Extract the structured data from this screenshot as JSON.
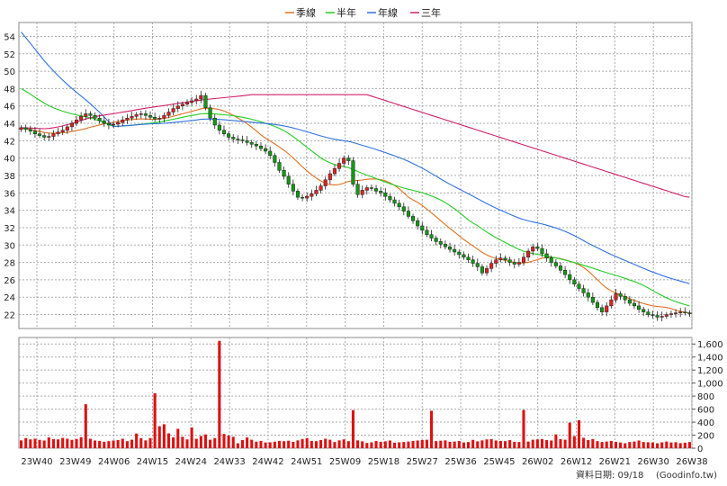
{
  "chart_data": {
    "type": "candlestick",
    "legend": [
      {
        "name": "季線",
        "color": "#e07020"
      },
      {
        "name": "半年",
        "color": "#22cc22"
      },
      {
        "name": "年線",
        "color": "#3070e0"
      },
      {
        "name": "三年",
        "color": "#d0206a"
      }
    ],
    "price_axis": {
      "ylim": [
        20.4,
        55.6
      ],
      "ticks": [
        22,
        24,
        26,
        28,
        30,
        32,
        34,
        36,
        38,
        40,
        42,
        44,
        46,
        48,
        50,
        52,
        54
      ]
    },
    "volume_axis": {
      "ylim": [
        0,
        1700
      ],
      "ticks": [
        "0",
        "200",
        "400",
        "600",
        "800",
        "1,000",
        "1,200",
        "1,400",
        "1,600"
      ]
    },
    "x_ticks": [
      "23W40",
      "23W49",
      "24W06",
      "24W15",
      "24W24",
      "24W33",
      "24W42",
      "24W51",
      "25W09",
      "25W18",
      "25W27",
      "25W36",
      "25W45",
      "26W02",
      "26W12",
      "26W21",
      "26W30",
      "26W38"
    ],
    "grid": true,
    "up_color": "#dd2222",
    "down_color": "#119911",
    "close": [
      43.5,
      43.3,
      43.1,
      42.8,
      42.6,
      42.4,
      42.5,
      42.8,
      43.0,
      43.2,
      43.6,
      44.0,
      44.4,
      44.8,
      45.1,
      44.9,
      44.6,
      44.3,
      44.0,
      43.8,
      43.9,
      44.1,
      44.4,
      44.6,
      44.8,
      45.0,
      45.1,
      44.9,
      44.7,
      44.5,
      44.6,
      44.9,
      45.3,
      45.7,
      46.0,
      46.2,
      46.4,
      46.6,
      46.8,
      47.2,
      45.8,
      44.6,
      43.8,
      43.2,
      42.8,
      42.4,
      42.2,
      42.1,
      42.0,
      41.8,
      41.6,
      41.4,
      41.1,
      40.8,
      40.3,
      39.5,
      38.6,
      37.9,
      37.0,
      36.2,
      35.5,
      35.4,
      35.6,
      35.9,
      36.3,
      36.8,
      37.5,
      38.2,
      38.8,
      39.4,
      40.0,
      39.7,
      37.0,
      35.8,
      36.3,
      36.6,
      36.5,
      36.2,
      36.0,
      35.6,
      35.2,
      34.8,
      34.4,
      33.9,
      33.3,
      32.8,
      32.2,
      31.7,
      31.2,
      30.8,
      30.4,
      30.1,
      29.8,
      29.5,
      29.2,
      28.9,
      28.6,
      28.3,
      27.9,
      27.5,
      26.8,
      27.3,
      27.9,
      28.3,
      28.5,
      28.3,
      28.0,
      27.8,
      28.0,
      28.6,
      29.3,
      29.8,
      29.6,
      29.0,
      28.5,
      28.0,
      27.6,
      27.1,
      26.6,
      26.0,
      25.5,
      25.0,
      24.5,
      24.0,
      23.4,
      22.8,
      22.3,
      23.0,
      23.7,
      24.4,
      24.1,
      23.7,
      23.3,
      23.0,
      22.6,
      22.3,
      22.0,
      21.9,
      21.7,
      21.8,
      22.0,
      22.1,
      22.2,
      22.3,
      22.2,
      22.1
    ],
    "volume": [
      120,
      155,
      135,
      145,
      128,
      118,
      165,
      140,
      135,
      158,
      145,
      128,
      140,
      170,
      675,
      145,
      118,
      112,
      98,
      108,
      118,
      125,
      145,
      108,
      130,
      225,
      155,
      120,
      155,
      845,
      338,
      368,
      228,
      168,
      298,
      175,
      135,
      318,
      145,
      188,
      212,
      130,
      155,
      1648,
      218,
      195,
      175,
      75,
      125,
      165,
      130,
      100,
      112,
      88,
      90,
      100,
      112,
      108,
      115,
      98,
      120,
      140,
      155,
      112,
      108,
      125,
      145,
      130,
      95,
      120,
      135,
      108,
      585,
      120,
      105,
      80,
      90,
      110,
      98,
      105,
      118,
      85,
      90,
      95,
      102,
      112,
      118,
      125,
      130,
      575,
      108,
      115,
      120,
      98,
      102,
      110,
      88,
      95,
      128,
      105,
      120,
      135,
      140,
      118,
      112,
      108,
      125,
      98,
      95,
      588,
      102,
      130,
      135,
      140,
      125,
      118,
      212,
      140,
      130,
      392,
      185,
      430,
      160,
      125,
      140,
      108,
      95,
      102,
      112,
      98,
      88,
      75,
      95,
      102,
      118,
      95,
      92,
      88,
      75,
      90,
      102,
      88,
      92,
      78,
      85,
      95
    ]
  },
  "footer": {
    "date_label": "資料日期: 09/18",
    "source": "(Goodinfo.tw)"
  }
}
